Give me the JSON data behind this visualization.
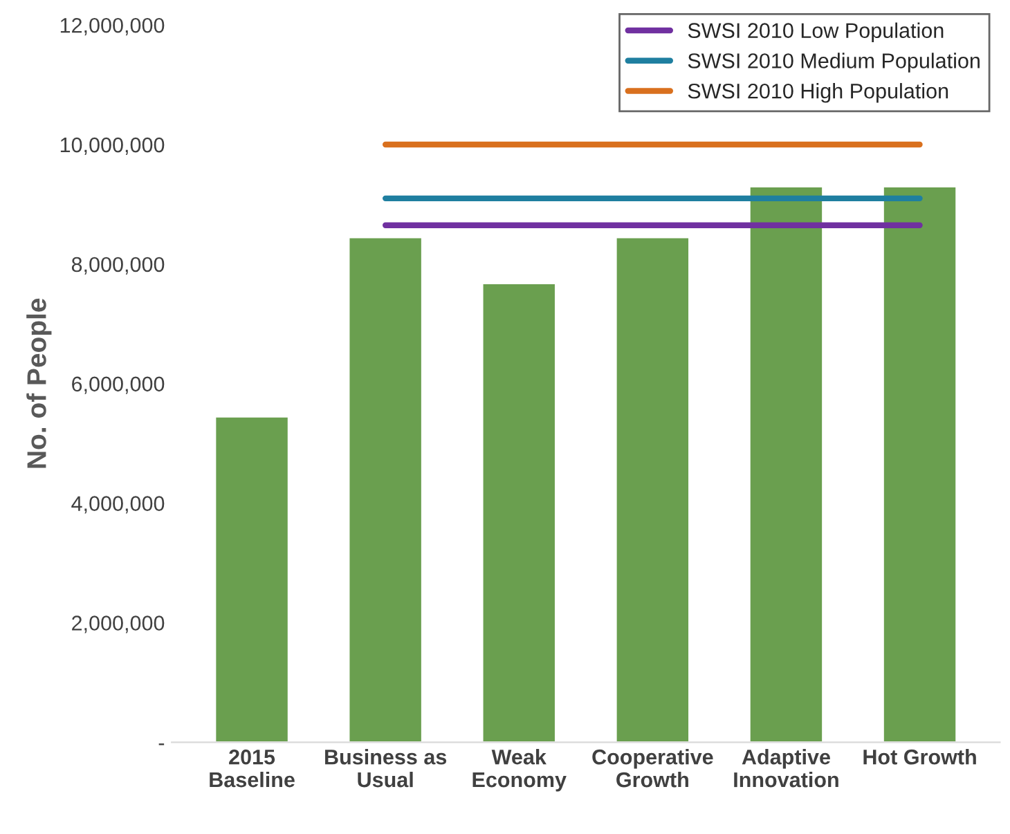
{
  "chart_data": {
    "type": "bar",
    "ylabel": "No. of People",
    "categories": [
      "2015\nBaseline",
      "Business as\nUsual",
      "Weak\nEconomy",
      "Cooperative\nGrowth",
      "Adaptive\nInnovation",
      "Hot Growth"
    ],
    "series": [
      {
        "color": "#6a9f4f",
        "values": [
          5450000,
          8450000,
          7680000,
          8450000,
          9300000,
          9300000
        ]
      },
      {
        "type": "line",
        "name": "SWSI 2010 Low Population",
        "color": "#7030a0",
        "values": [
          null,
          8650000,
          8650000,
          8650000,
          8650000,
          8650000
        ]
      },
      {
        "type": "line",
        "name": "SWSI 2010 Medium Population",
        "color": "#1f7fa0",
        "values": [
          null,
          9100000,
          9100000,
          9100000,
          9100000,
          9100000
        ]
      },
      {
        "type": "line",
        "name": "SWSI 2010 High Population",
        "color": "#d9701e",
        "values": [
          null,
          10000000,
          10000000,
          10000000,
          10000000,
          10000000
        ]
      }
    ],
    "ylim": [
      0,
      12000000
    ],
    "yticks": [
      {
        "value": 0,
        "label": "-"
      },
      {
        "value": 2000000,
        "label": "2,000,000"
      },
      {
        "value": 4000000,
        "label": "4,000,000"
      },
      {
        "value": 6000000,
        "label": "6,000,000"
      },
      {
        "value": 8000000,
        "label": "8,000,000"
      },
      {
        "value": 10000000,
        "label": "10,000,000"
      },
      {
        "value": 12000000,
        "label": "12,000,000"
      }
    ],
    "grid": false,
    "legend": "top right"
  }
}
